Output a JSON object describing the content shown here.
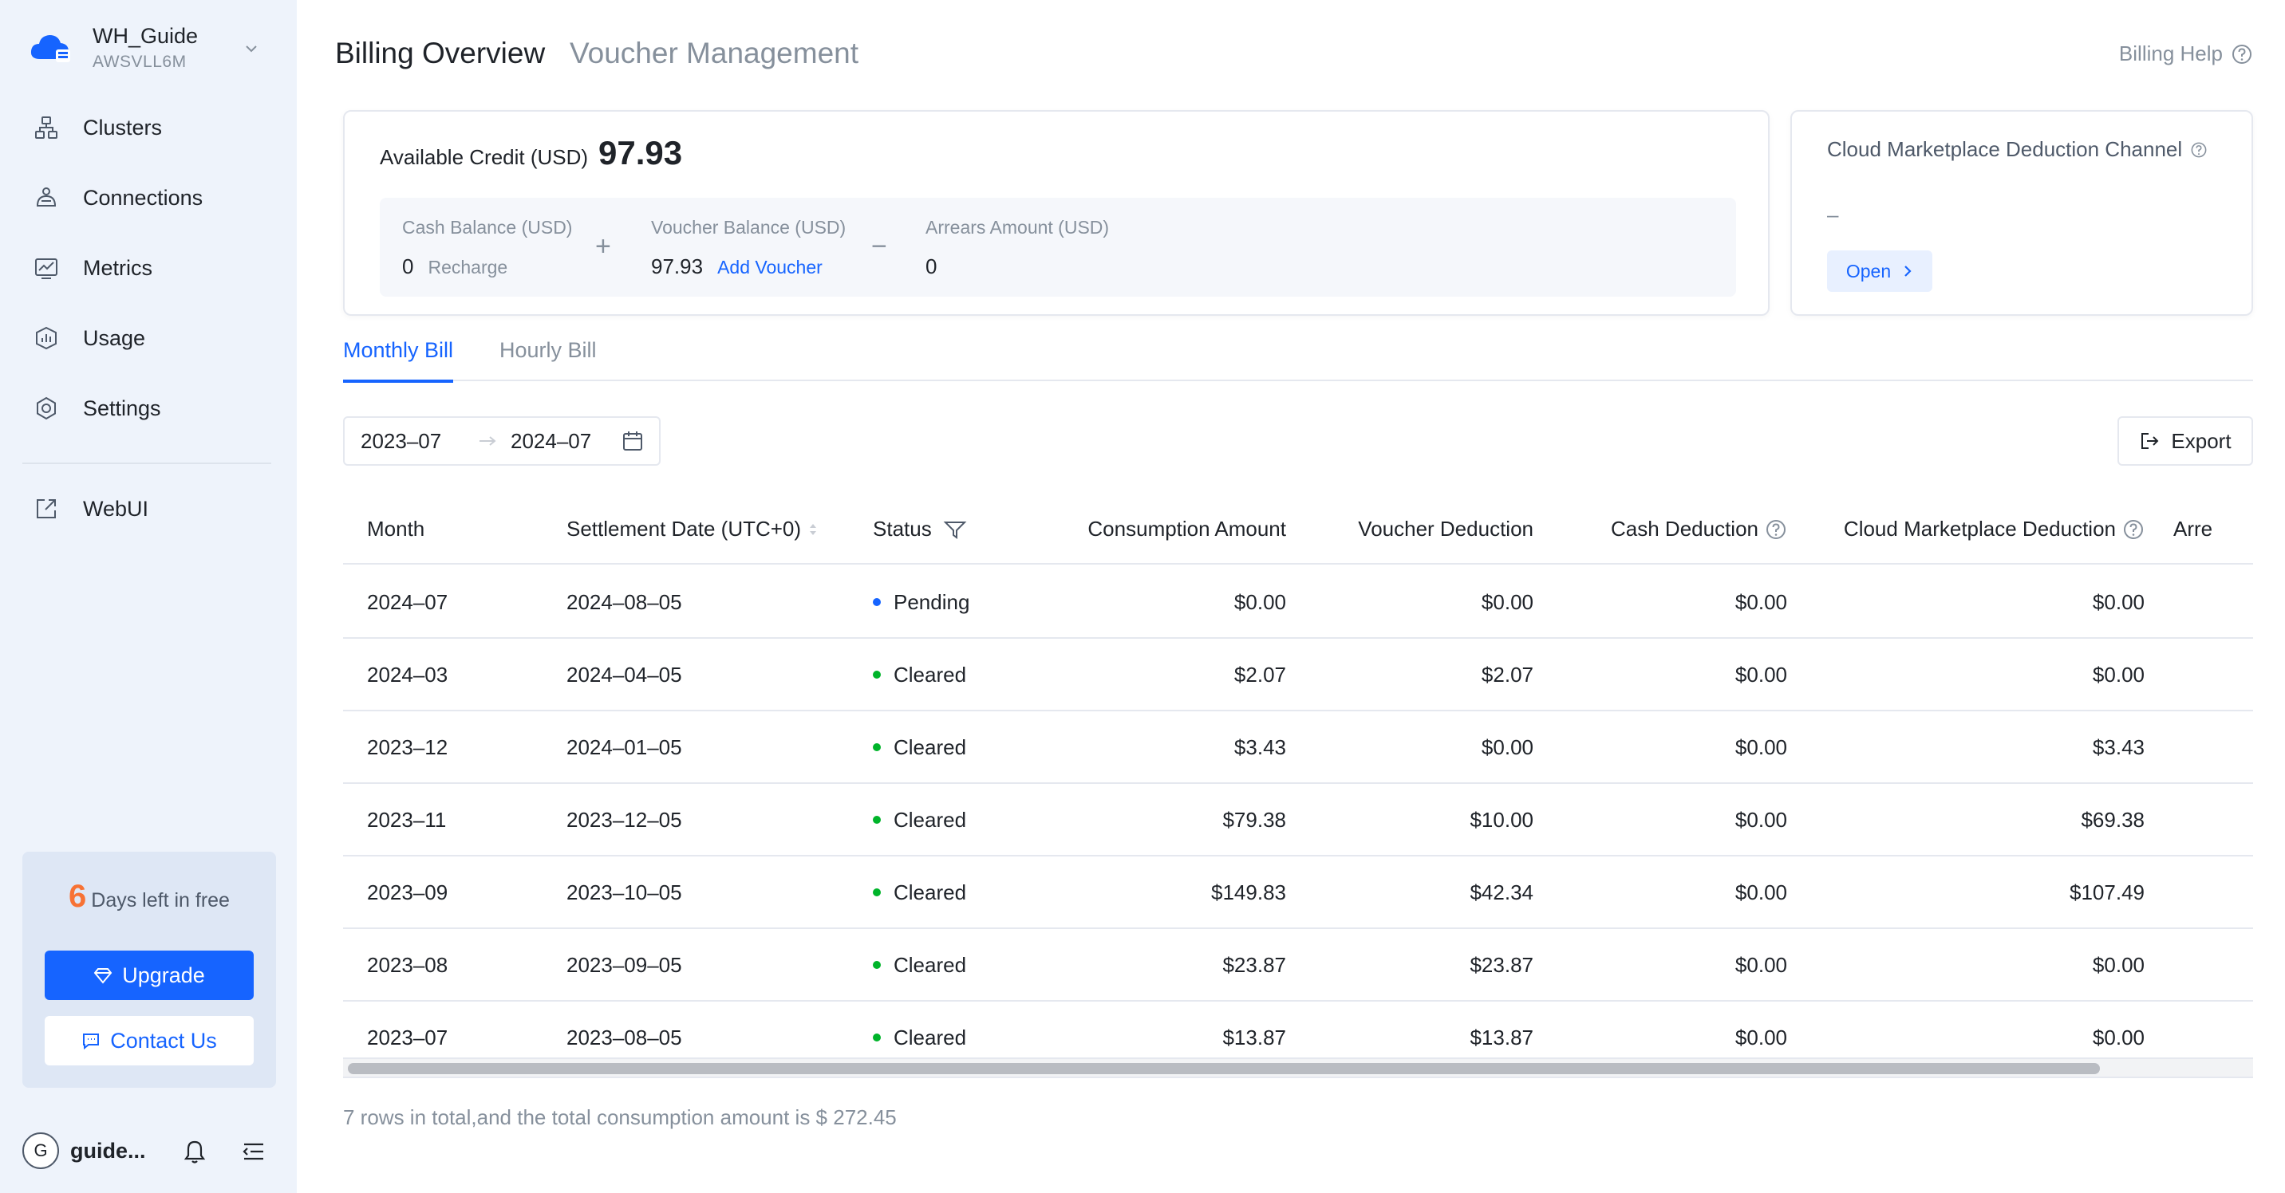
{
  "workspace": {
    "name": "WH_Guide",
    "id": "AWSVLL6M"
  },
  "nav": {
    "items": [
      {
        "label": "Clusters",
        "icon": "clusters-icon"
      },
      {
        "label": "Connections",
        "icon": "connections-icon"
      },
      {
        "label": "Metrics",
        "icon": "metrics-icon"
      },
      {
        "label": "Usage",
        "icon": "usage-icon"
      },
      {
        "label": "Settings",
        "icon": "gear-icon"
      }
    ],
    "webui": "WebUI"
  },
  "trial": {
    "days": "6",
    "text": "Days left in free",
    "upgrade_label": "Upgrade",
    "contact_label": "Contact Us"
  },
  "user": {
    "avatar_initial": "G",
    "name": "guide..."
  },
  "header": {
    "title": "Billing Overview",
    "subtitle": "Voucher Management",
    "help_label": "Billing Help"
  },
  "credit": {
    "label": "Available Credit (USD)",
    "value": "97.93",
    "cash_label": "Cash Balance (USD)",
    "cash_value": "0",
    "recharge_label": "Recharge",
    "plus_sign": "+",
    "voucher_label": "Voucher Balance (USD)",
    "voucher_value": "97.93",
    "add_voucher_label": "Add Voucher",
    "minus_sign": "−",
    "arrears_label": "Arrears Amount (USD)",
    "arrears_value": "0"
  },
  "marketplace": {
    "title": "Cloud Marketplace Deduction Channel",
    "value": "–",
    "open_label": "Open"
  },
  "tabs": [
    {
      "label": "Monthly Bill",
      "active": true
    },
    {
      "label": "Hourly Bill",
      "active": false
    }
  ],
  "date_range": {
    "start": "2023–07",
    "end": "2024–07"
  },
  "export_label": "Export",
  "table": {
    "columns": [
      "Month",
      "Settlement Date (UTC+0)",
      "Status",
      "Consumption Amount",
      "Voucher Deduction",
      "Cash Deduction",
      "Cloud Marketplace Deduction",
      "Arre"
    ],
    "rows": [
      {
        "month": "2024–07",
        "date": "2024–08–05",
        "status": "Pending",
        "consumption": "$0.00",
        "voucher": "$0.00",
        "cash": "$0.00",
        "marketplace": "$0.00"
      },
      {
        "month": "2024–03",
        "date": "2024–04–05",
        "status": "Cleared",
        "consumption": "$2.07",
        "voucher": "$2.07",
        "cash": "$0.00",
        "marketplace": "$0.00"
      },
      {
        "month": "2023–12",
        "date": "2024–01–05",
        "status": "Cleared",
        "consumption": "$3.43",
        "voucher": "$0.00",
        "cash": "$0.00",
        "marketplace": "$3.43"
      },
      {
        "month": "2023–11",
        "date": "2023–12–05",
        "status": "Cleared",
        "consumption": "$79.38",
        "voucher": "$10.00",
        "cash": "$0.00",
        "marketplace": "$69.38"
      },
      {
        "month": "2023–09",
        "date": "2023–10–05",
        "status": "Cleared",
        "consumption": "$149.83",
        "voucher": "$42.34",
        "cash": "$0.00",
        "marketplace": "$107.49"
      },
      {
        "month": "2023–08",
        "date": "2023–09–05",
        "status": "Cleared",
        "consumption": "$23.87",
        "voucher": "$23.87",
        "cash": "$0.00",
        "marketplace": "$0.00"
      },
      {
        "month": "2023–07",
        "date": "2023–08–05",
        "status": "Cleared",
        "consumption": "$13.87",
        "voucher": "$13.87",
        "cash": "$0.00",
        "marketplace": "$0.00"
      }
    ]
  },
  "summary": "7 rows in total,and the total consumption amount is $ 272.45",
  "colors": {
    "accent": "#1664ff",
    "pending": "#1664ff",
    "cleared": "#00b42a",
    "warning": "#f77234"
  }
}
